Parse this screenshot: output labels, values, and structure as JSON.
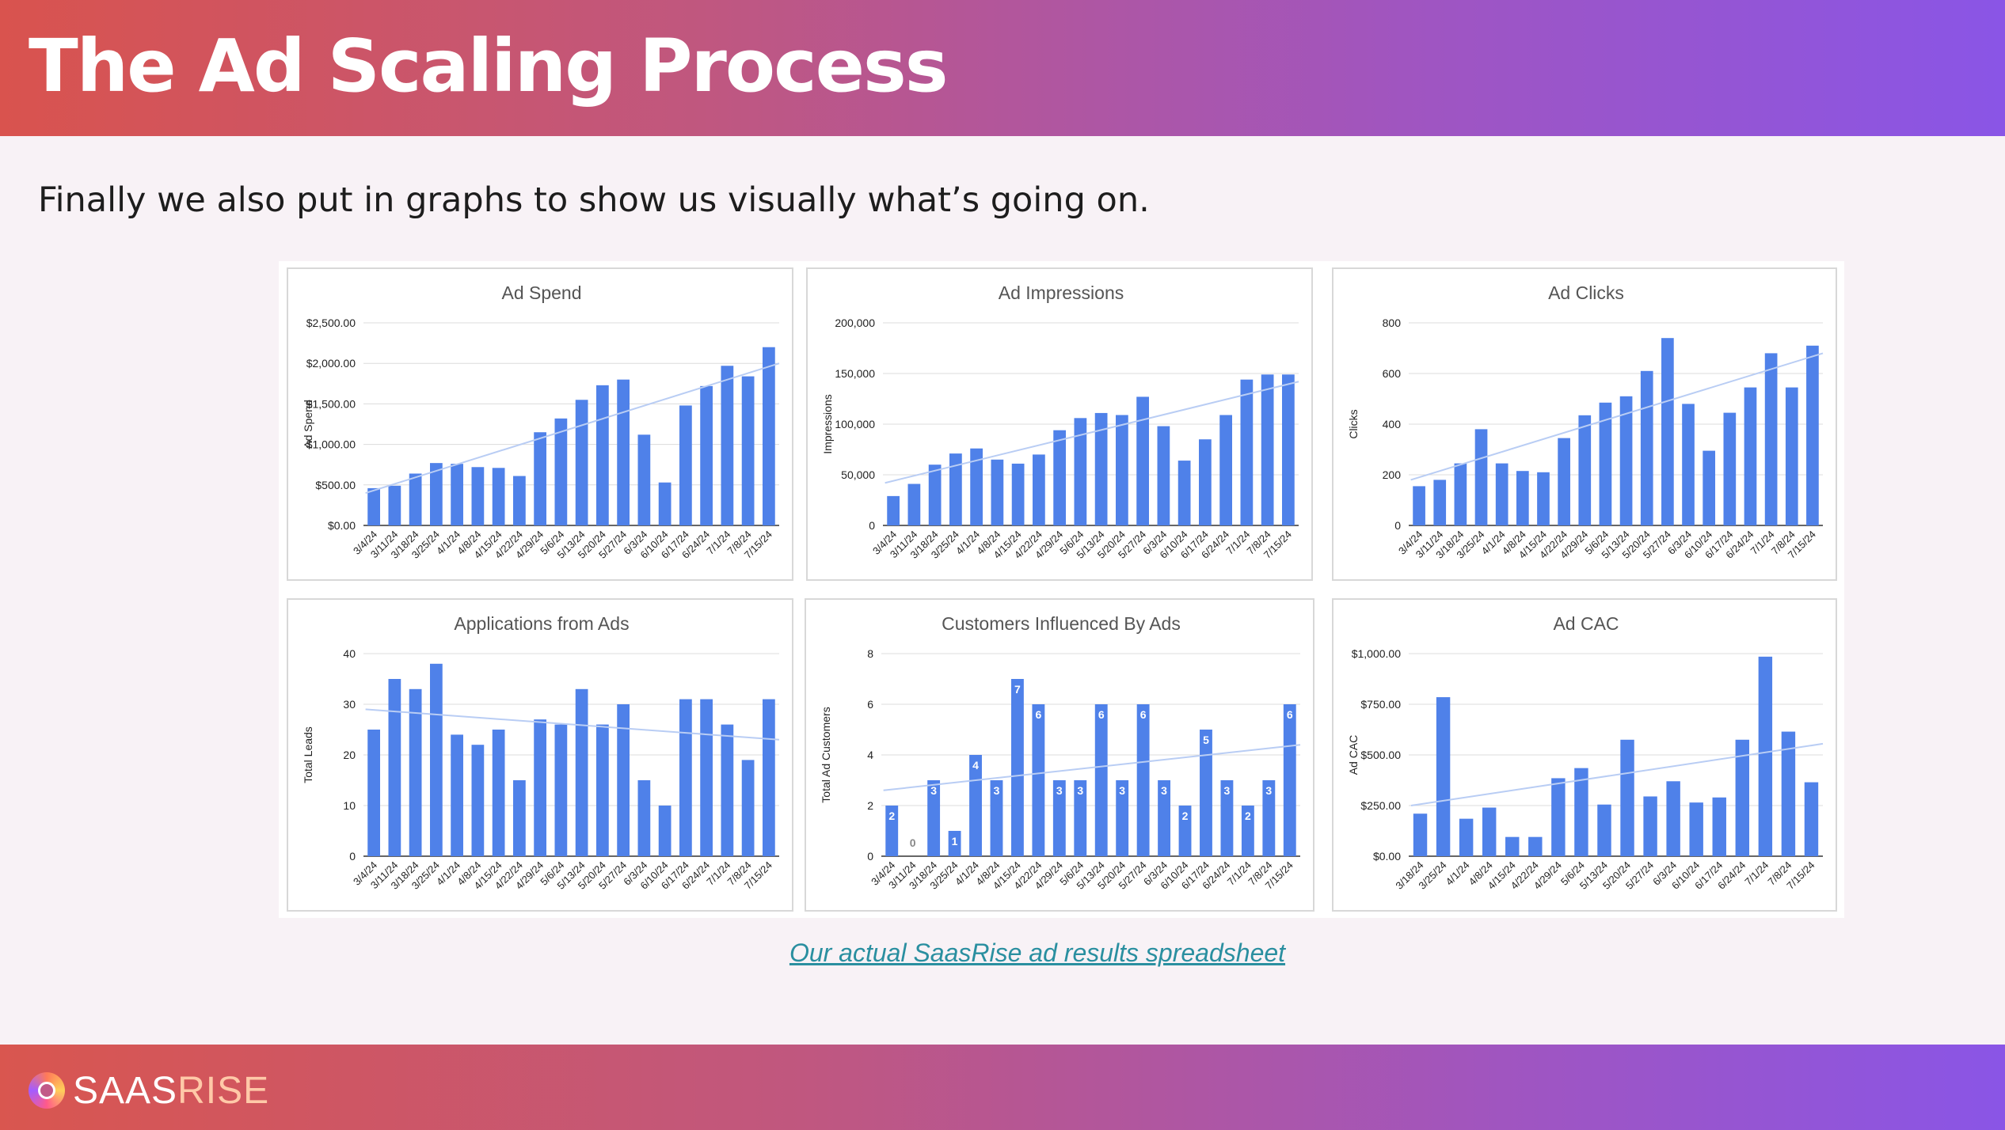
{
  "header": {
    "title": "The Ad Scaling Process"
  },
  "subtitle": "Finally we also put in graphs to show us visually what’s going on.",
  "link": {
    "text": "Our actual SaasRise ad results spreadsheet"
  },
  "logo": {
    "part1": "SAAS",
    "part2": "RISE",
    "icon": "saasrise-logo-icon"
  },
  "colors": {
    "bar": "#4f81e9",
    "trend": "#b9cdf4",
    "grid": "#dcdcdc",
    "axis": "#333333"
  },
  "chart_data": [
    {
      "type": "bar",
      "title": "Ad Spend",
      "ylabel": "Ad Spend",
      "ylim": [
        0,
        2500
      ],
      "yticks": [
        "$0.00",
        "$500.00",
        "$1,000.00",
        "$1,500.00",
        "$2,000.00",
        "$2,500.00"
      ],
      "categories": [
        "3/4/24",
        "3/11/24",
        "3/18/24",
        "3/25/24",
        "4/1/24",
        "4/8/24",
        "4/15/24",
        "4/22/24",
        "4/29/24",
        "5/6/24",
        "5/13/24",
        "5/20/24",
        "5/27/24",
        "6/3/24",
        "6/10/24",
        "6/17/24",
        "6/24/24",
        "7/1/24",
        "7/8/24",
        "7/15/24"
      ],
      "values": [
        460,
        490,
        640,
        770,
        760,
        720,
        710,
        610,
        1150,
        1320,
        1550,
        1730,
        1800,
        1120,
        530,
        1480,
        1720,
        1970,
        1840,
        2200
      ],
      "trend": [
        400,
        2000
      ],
      "data_labels": null
    },
    {
      "type": "bar",
      "title": "Ad Impressions",
      "ylabel": "Impressions",
      "ylim": [
        0,
        200000
      ],
      "yticks": [
        "0",
        "50,000",
        "100,000",
        "150,000",
        "200,000"
      ],
      "categories": [
        "3/4/24",
        "3/11/24",
        "3/18/24",
        "3/25/24",
        "4/1/24",
        "4/8/24",
        "4/15/24",
        "4/22/24",
        "4/29/24",
        "5/6/24",
        "5/13/24",
        "5/20/24",
        "5/27/24",
        "6/3/24",
        "6/10/24",
        "6/17/24",
        "6/24/24",
        "7/1/24",
        "7/8/24",
        "7/15/24"
      ],
      "values": [
        29000,
        41000,
        60000,
        71000,
        76000,
        65000,
        61000,
        70000,
        94000,
        106000,
        111000,
        109000,
        127000,
        98000,
        64000,
        85000,
        109000,
        144000,
        149000,
        149000
      ],
      "trend": [
        42000,
        142000
      ],
      "data_labels": null
    },
    {
      "type": "bar",
      "title": "Ad Clicks",
      "ylabel": "Clicks",
      "ylim": [
        0,
        800
      ],
      "yticks": [
        "0",
        "200",
        "400",
        "600",
        "800"
      ],
      "categories": [
        "3/4/24",
        "3/11/24",
        "3/18/24",
        "3/25/24",
        "4/1/24",
        "4/8/24",
        "4/15/24",
        "4/22/24",
        "4/29/24",
        "5/6/24",
        "5/13/24",
        "5/20/24",
        "5/27/24",
        "6/3/24",
        "6/10/24",
        "6/17/24",
        "6/24/24",
        "7/1/24",
        "7/8/24",
        "7/15/24"
      ],
      "values": [
        155,
        180,
        245,
        380,
        245,
        215,
        210,
        345,
        435,
        485,
        510,
        610,
        740,
        480,
        295,
        445,
        545,
        680,
        545,
        710
      ],
      "trend": [
        180,
        680
      ],
      "data_labels": null
    },
    {
      "type": "bar",
      "title": "Applications from Ads",
      "ylabel": "Total Leads",
      "ylim": [
        0,
        40
      ],
      "yticks": [
        "0",
        "10",
        "20",
        "30",
        "40"
      ],
      "categories": [
        "3/4/24",
        "3/11/24",
        "3/18/24",
        "3/25/24",
        "4/1/24",
        "4/8/24",
        "4/15/24",
        "4/22/24",
        "4/29/24",
        "5/6/24",
        "5/13/24",
        "5/20/24",
        "5/27/24",
        "6/3/24",
        "6/10/24",
        "6/17/24",
        "6/24/24",
        "7/1/24",
        "7/8/24",
        "7/15/24"
      ],
      "values": [
        25,
        35,
        33,
        38,
        24,
        22,
        25,
        15,
        27,
        26,
        33,
        26,
        30,
        15,
        10,
        31,
        31,
        26,
        19,
        31
      ],
      "trend": [
        29,
        23
      ],
      "data_labels": null
    },
    {
      "type": "bar",
      "title": "Customers Influenced By Ads",
      "ylabel": "Total Ad Customers",
      "ylim": [
        0,
        8
      ],
      "yticks": [
        "0",
        "2",
        "4",
        "6",
        "8"
      ],
      "categories": [
        "3/4/24",
        "3/11/24",
        "3/18/24",
        "3/25/24",
        "4/1/24",
        "4/8/24",
        "4/15/24",
        "4/22/24",
        "4/29/24",
        "5/6/24",
        "5/13/24",
        "5/20/24",
        "5/27/24",
        "6/3/24",
        "6/10/24",
        "6/17/24",
        "6/24/24",
        "7/1/24",
        "7/8/24",
        "7/15/24"
      ],
      "values": [
        2,
        0,
        3,
        1,
        4,
        3,
        7,
        6,
        3,
        3,
        6,
        3,
        6,
        3,
        2,
        5,
        3,
        2,
        3,
        6
      ],
      "trend": [
        2.6,
        4.4
      ],
      "data_labels": [
        "2",
        "0",
        "3",
        "1",
        "4",
        "3",
        "7",
        "6",
        "3",
        "3",
        "6",
        "3",
        "6",
        "3",
        "2",
        "5",
        "3",
        "2",
        "3",
        "6"
      ]
    },
    {
      "type": "bar",
      "title": "Ad CAC",
      "ylabel": "Ad CAC",
      "ylim": [
        0,
        1000
      ],
      "yticks": [
        "$0.00",
        "$250.00",
        "$500.00",
        "$750.00",
        "$1,000.00"
      ],
      "categories": [
        "3/18/24",
        "3/25/24",
        "4/1/24",
        "4/8/24",
        "4/15/24",
        "4/22/24",
        "4/29/24",
        "5/6/24",
        "5/13/24",
        "5/20/24",
        "5/27/24",
        "6/3/24",
        "6/10/24",
        "6/17/24",
        "6/24/24",
        "7/1/24",
        "7/8/24",
        "7/15/24"
      ],
      "values": [
        210,
        785,
        185,
        240,
        95,
        95,
        385,
        435,
        255,
        575,
        295,
        370,
        265,
        290,
        575,
        985,
        615,
        365
      ],
      "trend": [
        250,
        555
      ],
      "data_labels": null
    }
  ]
}
